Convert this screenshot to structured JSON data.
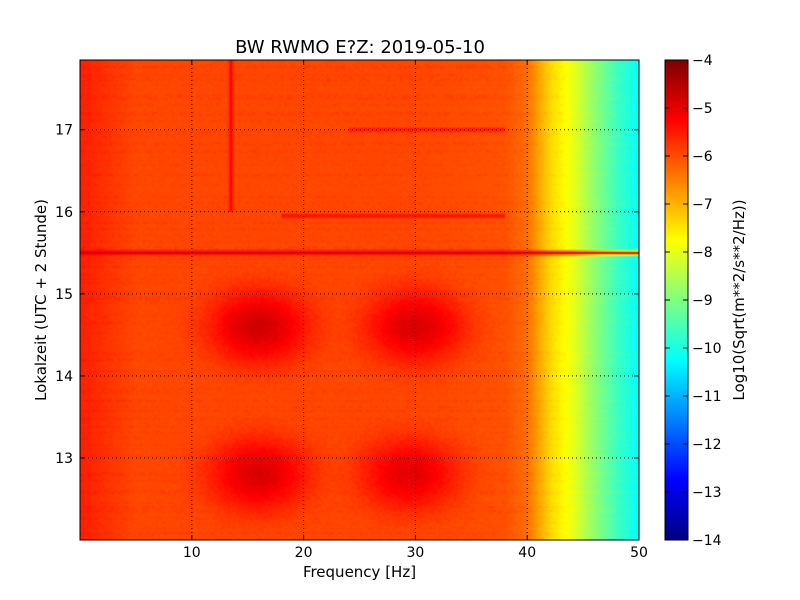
{
  "chart_data": {
    "type": "heatmap",
    "title": "BW RWMO E?Z: 2019-05-10",
    "xlabel": "Frequency [Hz]",
    "ylabel": "Lokalzeit (UTC + 2 Stunde)",
    "xlim": [
      0,
      50
    ],
    "ylim": [
      17.85,
      12.0
    ],
    "x_ticks": [
      10,
      20,
      30,
      40,
      50
    ],
    "y_ticks": [
      13,
      14,
      15,
      16,
      17
    ],
    "grid": true,
    "colorbar": {
      "label": "Log10(Sqrt(m**2/s**2/Hz))",
      "min": -14,
      "max": -4,
      "ticks": [
        -4,
        -5,
        -6,
        -7,
        -8,
        -9,
        -10,
        -11,
        -12,
        -13,
        -14
      ],
      "colormap": "jet"
    },
    "background_level": {
      "frequency_hz": [
        0,
        5,
        10,
        20,
        30,
        38,
        40,
        42,
        44,
        46,
        48,
        50
      ],
      "log10_amplitude": [
        -5.6,
        -6.0,
        -6.0,
        -6.0,
        -6.0,
        -6.1,
        -6.4,
        -7.4,
        -8.0,
        -8.9,
        -9.7,
        -10.3
      ]
    },
    "features": [
      {
        "kind": "blob",
        "frequency_hz": 16,
        "time_h": 12.8,
        "log10_amplitude": -4.9
      },
      {
        "kind": "blob",
        "frequency_hz": 16,
        "time_h": 14.6,
        "log10_amplitude": -4.8
      },
      {
        "kind": "blob",
        "frequency_hz": 29.5,
        "time_h": 12.8,
        "log10_amplitude": -5.0
      },
      {
        "kind": "blob",
        "frequency_hz": 30,
        "time_h": 14.6,
        "log10_amplitude": -4.9
      },
      {
        "kind": "band",
        "time_h": 15.5,
        "frequency_range_hz": [
          0,
          50
        ],
        "log10_amplitude": -4.8
      },
      {
        "kind": "band",
        "time_h": 15.95,
        "frequency_range_hz": [
          18,
          38
        ],
        "log10_amplitude": -5.3
      },
      {
        "kind": "band",
        "time_h": 17.0,
        "frequency_range_hz": [
          24,
          38
        ],
        "log10_amplitude": -5.4
      },
      {
        "kind": "line",
        "frequency_hz": 13.5,
        "time_range_h": [
          16.0,
          17.85
        ],
        "log10_amplitude": -5.2
      }
    ]
  }
}
